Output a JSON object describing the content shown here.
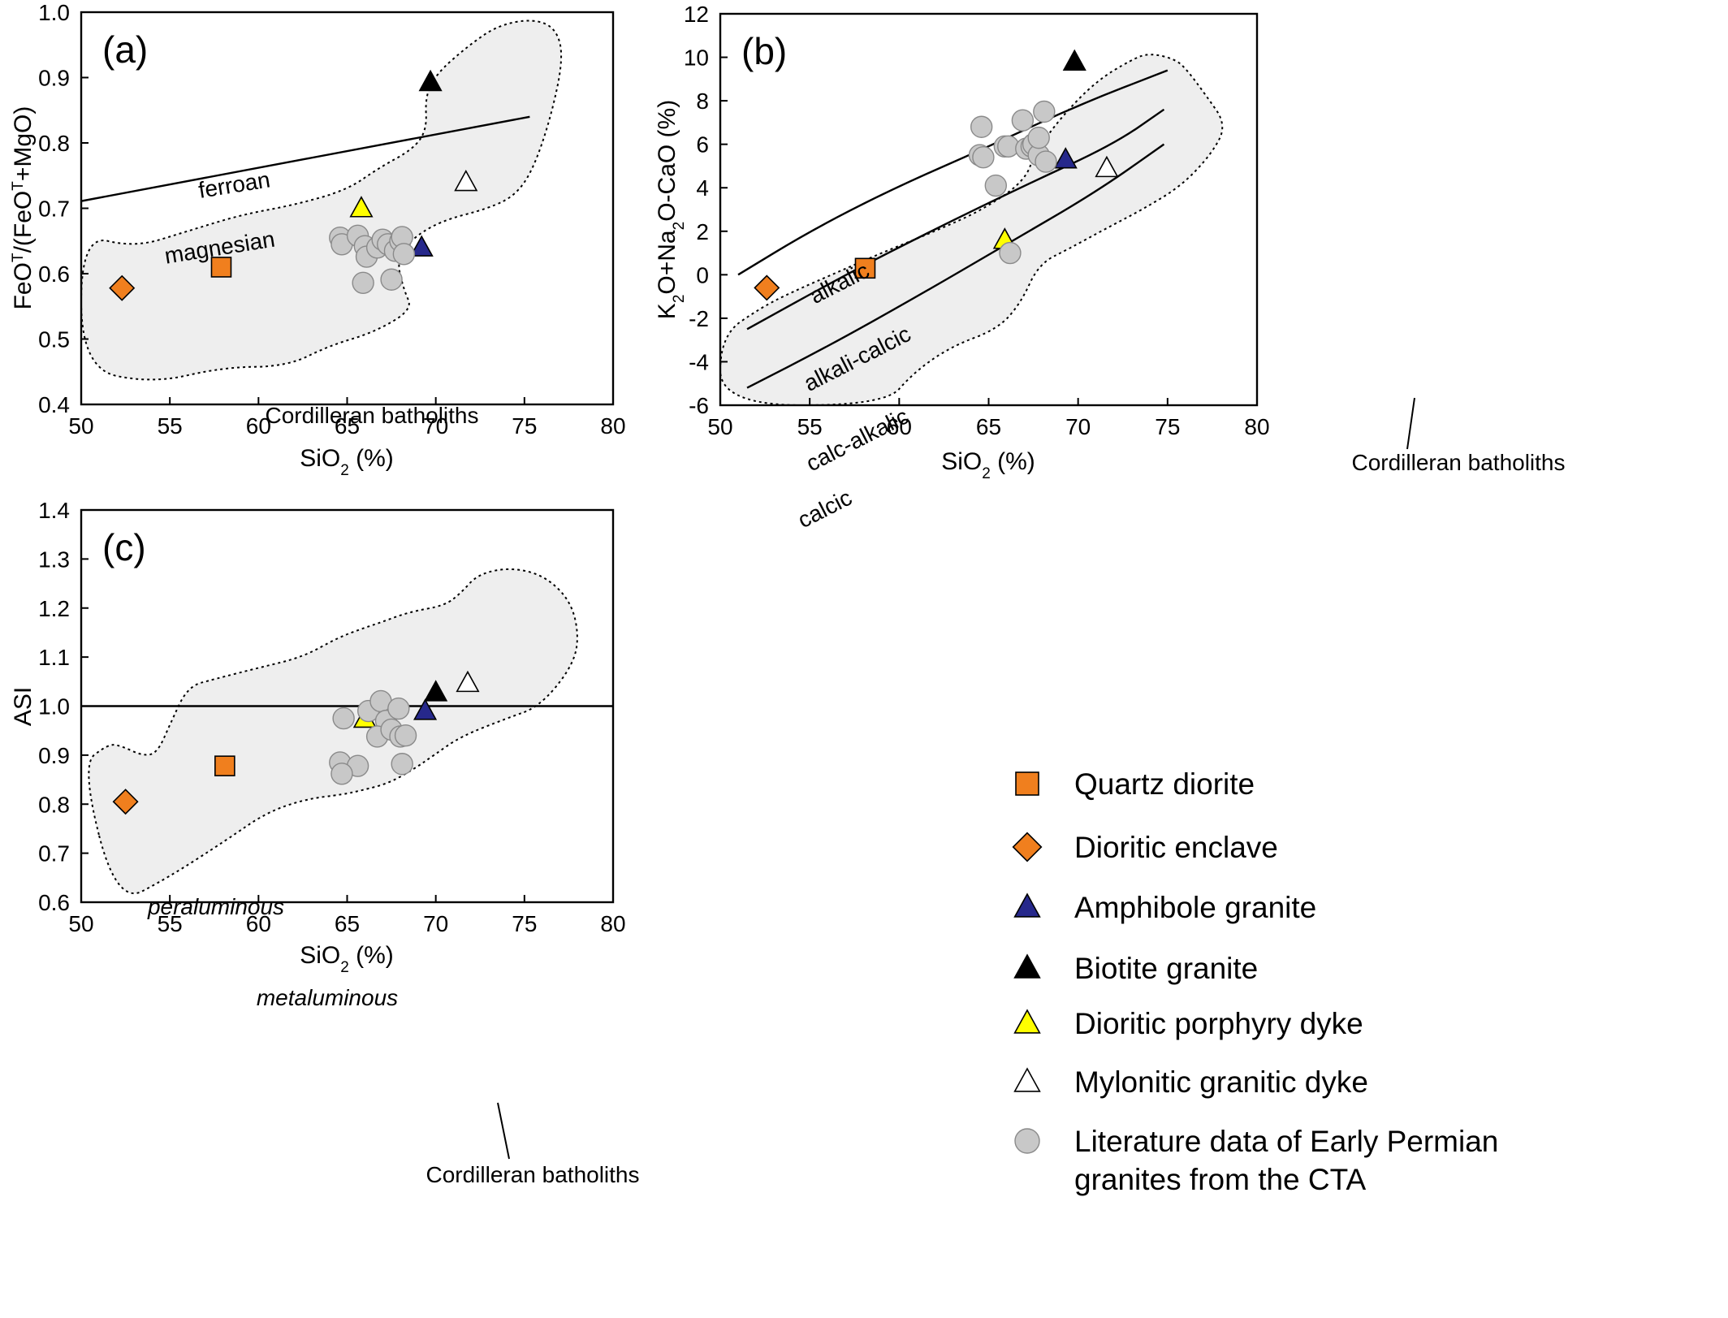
{
  "legend": [
    {
      "key": "quartz_diorite",
      "label": "Quartz diorite",
      "marker": "square",
      "color": "#f07f1e"
    },
    {
      "key": "dioritic_enclave",
      "label": "Dioritic enclave",
      "marker": "diamond",
      "color": "#f07f1e"
    },
    {
      "key": "amphibole_granite",
      "label": "Amphibole granite",
      "marker": "triangle",
      "color": "#26288b"
    },
    {
      "key": "biotite_granite",
      "label": "Biotite granite",
      "marker": "triangle",
      "color": "#000000"
    },
    {
      "key": "dioritic_porphyry_dyke",
      "label": "Dioritic porphyry dyke",
      "marker": "triangle",
      "color": "#ffff00"
    },
    {
      "key": "mylonitic_granitic_dyke",
      "label": "Mylonitic granitic dyke",
      "marker": "triangle",
      "color": "#ffffff"
    },
    {
      "key": "literature",
      "label": "Literature data of Early  Permian",
      "label2": "granites from the CTA",
      "marker": "circle",
      "color": "#c8c8c8"
    }
  ],
  "colors": {
    "field_fill": "#eeeeee",
    "circle_fill": "#c8c8c8",
    "circle_stroke": "#8a8a8a"
  },
  "chart_data": [
    {
      "panel": "(a)",
      "type": "scatter",
      "xlabel": "SiO₂ (%)",
      "ylabel": "FeOᵀ/(FeOᵀ+MgO)",
      "xlim": [
        50,
        80
      ],
      "ylim": [
        0.4,
        1.0
      ],
      "xticks": [
        "50",
        "55",
        "60",
        "65",
        "70",
        "75",
        "80"
      ],
      "yticks": [
        "0.4",
        "0.5",
        "0.6",
        "0.7",
        "0.8",
        "0.9",
        "1.0"
      ],
      "field_label": "Cordilleran batholiths",
      "boundary_labels": [
        "ferroan",
        "magnesian"
      ],
      "boundary_line": [
        [
          50,
          0.711
        ],
        [
          75.3,
          0.84
        ]
      ],
      "field_outline": [
        [
          50,
          0.66
        ],
        [
          53,
          0.64
        ],
        [
          56,
          0.665
        ],
        [
          59,
          0.69
        ],
        [
          62,
          0.705
        ],
        [
          65,
          0.728
        ],
        [
          66.8,
          0.762
        ],
        [
          68.7,
          0.79
        ],
        [
          69.5,
          0.82
        ],
        [
          69.4,
          0.87
        ],
        [
          70,
          0.905
        ],
        [
          71.8,
          0.948
        ],
        [
          73.5,
          0.98
        ],
        [
          75.5,
          0.99
        ],
        [
          76.8,
          0.975
        ],
        [
          77.2,
          0.93
        ],
        [
          76.5,
          0.84
        ],
        [
          75.5,
          0.76
        ],
        [
          74.5,
          0.72
        ],
        [
          73,
          0.7
        ],
        [
          70.2,
          0.68
        ],
        [
          68.5,
          0.65
        ],
        [
          67.8,
          0.62
        ],
        [
          68.2,
          0.575
        ],
        [
          68.7,
          0.545
        ],
        [
          66.5,
          0.51
        ],
        [
          64,
          0.49
        ],
        [
          61.6,
          0.458
        ],
        [
          58,
          0.457
        ],
        [
          54,
          0.432
        ],
        [
          50,
          0.455
        ]
      ],
      "series": [
        {
          "key": "quartz_diorite",
          "points": [
            [
              57.9,
              0.61
            ]
          ]
        },
        {
          "key": "dioritic_enclave",
          "points": [
            [
              52.3,
              0.578
            ]
          ]
        },
        {
          "key": "amphibole_granite",
          "points": [
            [
              69.2,
              0.64
            ]
          ]
        },
        {
          "key": "biotite_granite",
          "points": [
            [
              69.7,
              0.893
            ]
          ]
        },
        {
          "key": "dioritic_porphyry_dyke",
          "points": [
            [
              65.8,
              0.7
            ]
          ]
        },
        {
          "key": "mylonitic_granitic_dyke",
          "points": [
            [
              71.7,
              0.74
            ]
          ]
        },
        {
          "key": "literature",
          "points": [
            [
              64.6,
              0.655
            ],
            [
              64.7,
              0.645
            ],
            [
              65.6,
              0.658
            ],
            [
              66.0,
              0.642
            ],
            [
              66.1,
              0.626
            ],
            [
              66.7,
              0.64
            ],
            [
              67.0,
              0.652
            ],
            [
              67.3,
              0.645
            ],
            [
              67.7,
              0.635
            ],
            [
              68.0,
              0.65
            ],
            [
              68.1,
              0.656
            ],
            [
              68.2,
              0.63
            ],
            [
              67.5,
              0.591
            ],
            [
              65.9,
              0.586
            ]
          ]
        }
      ]
    },
    {
      "panel": "(b)",
      "type": "scatter",
      "xlabel": "SiO₂ (%)",
      "ylabel": "K₂O+Na₂O-CaO (%)",
      "xlim": [
        50,
        80
      ],
      "ylim": [
        -6,
        12
      ],
      "xticks": [
        "50",
        "55",
        "60",
        "65",
        "70",
        "75",
        "80"
      ],
      "yticks": [
        "-6",
        "-4",
        "-2",
        "0",
        "2",
        "4",
        "6",
        "8",
        "10",
        "12"
      ],
      "field_label": "Cordilleran batholiths",
      "boundary_labels": [
        "alkalic",
        "alkali-calcic",
        "calc-alkalic",
        "calcic"
      ],
      "boundary_lines": [
        [
          [
            51,
            0.0
          ],
          [
            55,
            2.0
          ],
          [
            59.5,
            3.9
          ],
          [
            65,
            5.9
          ],
          [
            70,
            7.8
          ],
          [
            75,
            9.4
          ]
        ],
        [
          [
            51.5,
            -2.5
          ],
          [
            57,
            0.0
          ],
          [
            62,
            2.1
          ],
          [
            67,
            4.1
          ],
          [
            72,
            6.0
          ],
          [
            74.8,
            7.6
          ]
        ],
        [
          [
            51.5,
            -5.2
          ],
          [
            56,
            -3.3
          ],
          [
            61,
            -1.0
          ],
          [
            66,
            1.4
          ],
          [
            71,
            3.8
          ],
          [
            74.8,
            6.0
          ]
        ]
      ],
      "field_outline": [
        [
          50,
          -2.8
        ],
        [
          52.3,
          -1.5
        ],
        [
          54,
          -0.8
        ],
        [
          56.5,
          0.1
        ],
        [
          59,
          1.0
        ],
        [
          62,
          2.0
        ],
        [
          64.7,
          3.0
        ],
        [
          67,
          4.3
        ],
        [
          67.6,
          5.6
        ],
        [
          69,
          7.2
        ],
        [
          71,
          8.9
        ],
        [
          73,
          9.9
        ],
        [
          74,
          10.2
        ],
        [
          75.5,
          9.9
        ],
        [
          76.2,
          9.3
        ],
        [
          77.1,
          8.3
        ],
        [
          78.3,
          6.9
        ],
        [
          77.5,
          5.6
        ],
        [
          75.8,
          4.1
        ],
        [
          73.6,
          3.0
        ],
        [
          71.5,
          2.1
        ],
        [
          69.5,
          1.2
        ],
        [
          67.8,
          0.5
        ],
        [
          66.8,
          -1.3
        ],
        [
          65.5,
          -2.5
        ],
        [
          62.9,
          -3.3
        ],
        [
          60.8,
          -4.5
        ],
        [
          59.2,
          -6.0
        ],
        [
          50,
          -6.0
        ]
      ],
      "series": [
        {
          "key": "quartz_diorite",
          "points": [
            [
              58.1,
              0.3
            ]
          ]
        },
        {
          "key": "dioritic_enclave",
          "points": [
            [
              52.6,
              -0.6
            ]
          ]
        },
        {
          "key": "amphibole_granite",
          "points": [
            [
              69.3,
              5.3
            ]
          ]
        },
        {
          "key": "biotite_granite",
          "points": [
            [
              69.8,
              9.8
            ]
          ]
        },
        {
          "key": "dioritic_porphyry_dyke",
          "points": [
            [
              65.9,
              1.6
            ]
          ]
        },
        {
          "key": "mylonitic_granitic_dyke",
          "points": [
            [
              71.6,
              4.9
            ]
          ]
        },
        {
          "key": "literature",
          "points": [
            [
              64.5,
              5.5
            ],
            [
              64.6,
              6.8
            ],
            [
              64.7,
              5.4
            ],
            [
              65.9,
              5.9
            ],
            [
              66.1,
              5.9
            ],
            [
              66.9,
              7.1
            ],
            [
              67.1,
              5.8
            ],
            [
              67.4,
              5.9
            ],
            [
              67.5,
              6.0
            ],
            [
              67.8,
              5.5
            ],
            [
              67.8,
              6.3
            ],
            [
              68.1,
              7.5
            ],
            [
              68.2,
              5.2
            ],
            [
              65.4,
              4.1
            ],
            [
              66.2,
              1.0
            ]
          ]
        }
      ]
    },
    {
      "panel": "(c)",
      "type": "scatter",
      "xlabel": "SiO₂ (%)",
      "ylabel": "ASI",
      "xlim": [
        50,
        80
      ],
      "ylim": [
        0.6,
        1.4
      ],
      "xticks": [
        "50",
        "55",
        "60",
        "65",
        "70",
        "75",
        "80"
      ],
      "yticks": [
        "0.6",
        "0.7",
        "0.8",
        "0.9",
        "1.0",
        "1.1",
        "1.2",
        "1.3",
        "1.4"
      ],
      "field_label": "Cordilleran batholiths",
      "boundary_labels": [
        "peraluminous",
        "metaluminous"
      ],
      "boundary_line": [
        [
          50,
          1.0
        ],
        [
          80,
          1.0
        ]
      ],
      "field_outline": [
        [
          50,
          0.88
        ],
        [
          51.5,
          0.922
        ],
        [
          52.2,
          0.92
        ],
        [
          53.5,
          0.898
        ],
        [
          54.3,
          0.905
        ],
        [
          55,
          0.962
        ],
        [
          56,
          1.04
        ],
        [
          57.5,
          1.055
        ],
        [
          60,
          1.078
        ],
        [
          62.5,
          1.1
        ],
        [
          64.5,
          1.14
        ],
        [
          66,
          1.16
        ],
        [
          67,
          1.172
        ],
        [
          68.5,
          1.192
        ],
        [
          70.5,
          1.205
        ],
        [
          71.4,
          1.23
        ],
        [
          72.4,
          1.27
        ],
        [
          74.3,
          1.283
        ],
        [
          76.2,
          1.265
        ],
        [
          77.7,
          1.21
        ],
        [
          78.1,
          1.13
        ],
        [
          77.5,
          1.07
        ],
        [
          75.8,
          0.998
        ],
        [
          74,
          0.975
        ],
        [
          71.4,
          0.938
        ],
        [
          69.9,
          0.9
        ],
        [
          68.7,
          0.87
        ],
        [
          67.3,
          0.842
        ],
        [
          65.8,
          0.828
        ],
        [
          64.8,
          0.82
        ],
        [
          62.6,
          0.81
        ],
        [
          60.4,
          0.782
        ],
        [
          58.2,
          0.727
        ],
        [
          54.9,
          0.65
        ],
        [
          52,
          0.595
        ]
      ],
      "series": [
        {
          "key": "quartz_diorite",
          "points": [
            [
              58.1,
              0.878
            ]
          ]
        },
        {
          "key": "dioritic_enclave",
          "points": [
            [
              52.5,
              0.805
            ]
          ]
        },
        {
          "key": "amphibole_granite",
          "points": [
            [
              69.4,
              0.99
            ]
          ]
        },
        {
          "key": "biotite_granite",
          "points": [
            [
              70.0,
              1.028
            ]
          ]
        },
        {
          "key": "dioritic_porphyry_dyke",
          "points": [
            [
              66.0,
              0.974
            ]
          ]
        },
        {
          "key": "mylonitic_granitic_dyke",
          "points": [
            [
              71.8,
              1.047
            ]
          ]
        },
        {
          "key": "literature",
          "points": [
            [
              64.8,
              0.975
            ],
            [
              66.2,
              0.99
            ],
            [
              66.9,
              1.01
            ],
            [
              67.2,
              0.97
            ],
            [
              67.9,
              0.995
            ],
            [
              66.7,
              0.938
            ],
            [
              67.5,
              0.952
            ],
            [
              68.0,
              0.938
            ],
            [
              68.3,
              0.94
            ],
            [
              64.6,
              0.885
            ],
            [
              65.6,
              0.878
            ],
            [
              64.7,
              0.862
            ],
            [
              68.1,
              0.882
            ]
          ]
        }
      ]
    }
  ]
}
